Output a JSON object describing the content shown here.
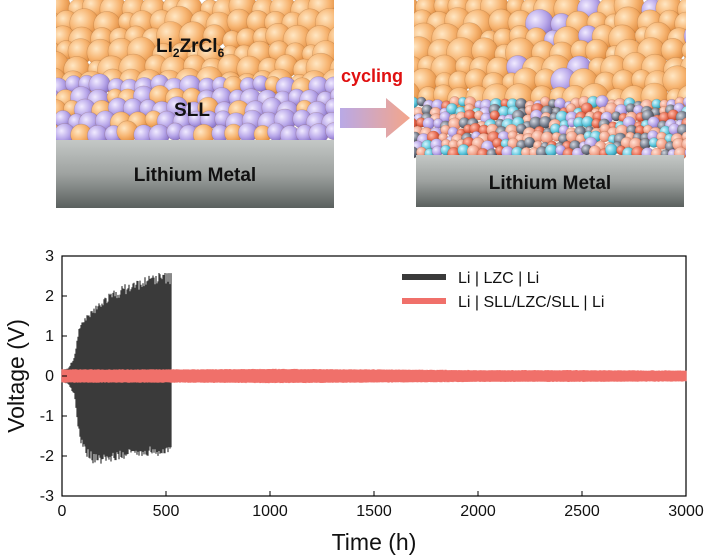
{
  "schematic": {
    "left": {
      "top_layer_label_main": "Li",
      "top_layer_label_sub1": "2",
      "top_layer_label_mid": "ZrCl",
      "top_layer_label_sub2": "6",
      "interlayer_label": "SLL",
      "substrate_label": "Lithium Metal"
    },
    "arrow_label": "cycling",
    "right": {
      "substrate_label": "Lithium Metal"
    },
    "colors": {
      "lzc_particle": "#f5b06b",
      "sll_particle": "#b9a9e6",
      "metal_top": "#b8bcba",
      "metal_bottom": "#5f6563",
      "arrow_start": "#b9a9e6",
      "arrow_end": "#f4a58a",
      "decomp_salmon": "#f2a890",
      "decomp_red": "#e46a50",
      "decomp_cyan": "#5cc6dc",
      "decomp_slate": "#707888"
    }
  },
  "chart_data": {
    "type": "line",
    "xlabel": "Time (h)",
    "ylabel": "Voltage (V)",
    "xlim": [
      0,
      3000
    ],
    "ylim": [
      -3,
      3
    ],
    "xticks": [
      0,
      500,
      1000,
      1500,
      2000,
      2500,
      3000
    ],
    "yticks": [
      -3,
      -2,
      -1,
      0,
      1,
      2,
      3
    ],
    "legend_position": "top-right",
    "series": [
      {
        "name": "Li | LZC | Li",
        "color": "#3a3a3a",
        "envelope": {
          "t": [
            0,
            30,
            60,
            80,
            100,
            150,
            200,
            300,
            400,
            450,
            500,
            525
          ],
          "upper": [
            0.15,
            0.2,
            0.5,
            1.2,
            1.4,
            1.7,
            2.0,
            2.3,
            2.5,
            2.6,
            2.6,
            2.6
          ],
          "lower": [
            -0.15,
            -0.2,
            -0.5,
            -1.4,
            -1.9,
            -2.2,
            -2.2,
            -2.1,
            -2.0,
            -2.0,
            -2.0,
            -1.95
          ]
        }
      },
      {
        "name": "Li | SLL/LZC/SLL | Li",
        "color": "#f0706a",
        "envelope": {
          "t": [
            0,
            500,
            1000,
            1500,
            2000,
            2500,
            3000
          ],
          "upper": [
            0.17,
            0.17,
            0.18,
            0.17,
            0.15,
            0.15,
            0.14
          ],
          "lower": [
            -0.17,
            -0.17,
            -0.18,
            -0.17,
            -0.15,
            -0.15,
            -0.14
          ]
        }
      }
    ]
  }
}
